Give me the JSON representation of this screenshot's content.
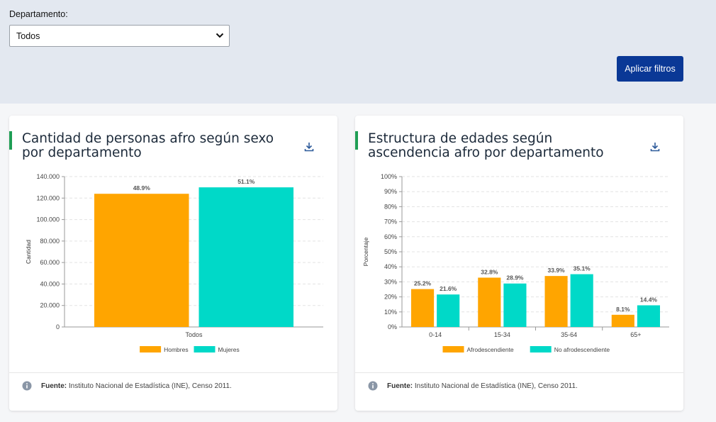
{
  "filters": {
    "department_label": "Departamento:",
    "department_value": "Todos",
    "apply_label": "Aplicar filtros"
  },
  "cards": [
    {
      "title": "Cantidad de personas afro según sexo por departamento",
      "source_label": "Fuente:",
      "source_text": "Instituto Nacional de Estadística (INE), Censo 2011.",
      "chart_data": {
        "type": "bar",
        "categories": [
          "Todos"
        ],
        "series": [
          {
            "name": "Hombres",
            "values": [
              124000
            ],
            "labels": [
              "48.9%"
            ],
            "color": "#ffa500"
          },
          {
            "name": "Mujeres",
            "values": [
              130000
            ],
            "labels": [
              "51.1%"
            ],
            "color": "#00d9c8"
          }
        ],
        "ylabel": "Cantidad",
        "xlabel": "",
        "ylim": [
          0,
          140000
        ],
        "yticks": [
          "0",
          "20.000",
          "40.000",
          "60.000",
          "80.000",
          "100.000",
          "120.000",
          "140.000"
        ],
        "legend": "bottom",
        "grid": true
      }
    },
    {
      "title": "Estructura de edades según ascendencia afro por departamento",
      "source_label": "Fuente:",
      "source_text": "Instituto Nacional de Estadística (INE), Censo 2011.",
      "chart_data": {
        "type": "bar",
        "categories": [
          "0-14",
          "15-34",
          "35-64",
          "65+"
        ],
        "series": [
          {
            "name": "Afrodescendiente",
            "values": [
              25.2,
              32.8,
              33.9,
              8.1
            ],
            "labels": [
              "25.2%",
              "32.8%",
              "33.9%",
              "8.1%"
            ],
            "color": "#ffa500"
          },
          {
            "name": "No afrodescendiente",
            "values": [
              21.6,
              28.9,
              35.1,
              14.4
            ],
            "labels": [
              "21.6%",
              "28.9%",
              "35.1%",
              "14.4%"
            ],
            "color": "#00d9c8"
          }
        ],
        "ylabel": "Porcentaje",
        "xlabel": "",
        "ylim": [
          0,
          100
        ],
        "yticks": [
          "0%",
          "10%",
          "20%",
          "30%",
          "40%",
          "50%",
          "60%",
          "70%",
          "80%",
          "90%",
          "100%"
        ],
        "legend": "bottom",
        "grid": true
      }
    }
  ]
}
